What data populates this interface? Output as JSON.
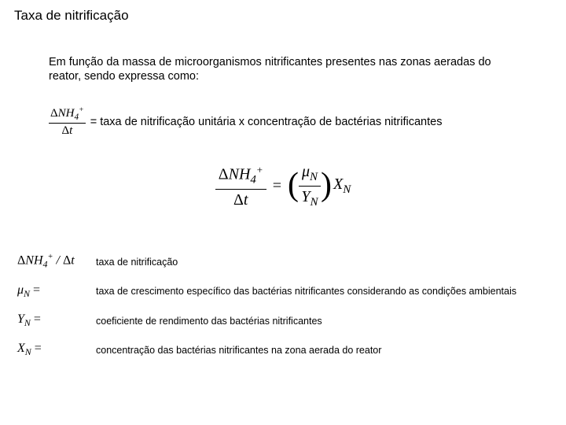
{
  "title": "Taxa de nitrificação",
  "intro": "Em função da massa de microorganismos nitrificantes presentes nas zonas aeradas do reator, sendo expressa como:",
  "line1": {
    "frac_num_html": "ΔNH₄⁺",
    "frac_den_html": "Δt",
    "text": "= taxa de nitrificação unitária x concentração de bactérias nitrificantes"
  },
  "main_equation": {
    "left_num": "ΔNH₄⁺",
    "left_den": "Δt",
    "right_num": "μN",
    "right_den": "YN",
    "tail": "XN"
  },
  "definitions": [
    {
      "symbol_html": "ΔNH₄⁺ / Δt",
      "desc": "taxa de nitrificação"
    },
    {
      "symbol_html": "μN =",
      "desc": "taxa de crescimento específico das bactérias nitrificantes considerando as condições ambientais"
    },
    {
      "symbol_html": "YN =",
      "desc": "coeficiente de rendimento das bactérias nitrificantes"
    },
    {
      "symbol_html": "XN =",
      "desc": "concentração das bactérias nitrificantes na zona aerada do reator"
    }
  ],
  "colors": {
    "background": "#ffffff",
    "text": "#000000"
  },
  "fonts": {
    "body": "Arial",
    "math": "Times New Roman"
  }
}
